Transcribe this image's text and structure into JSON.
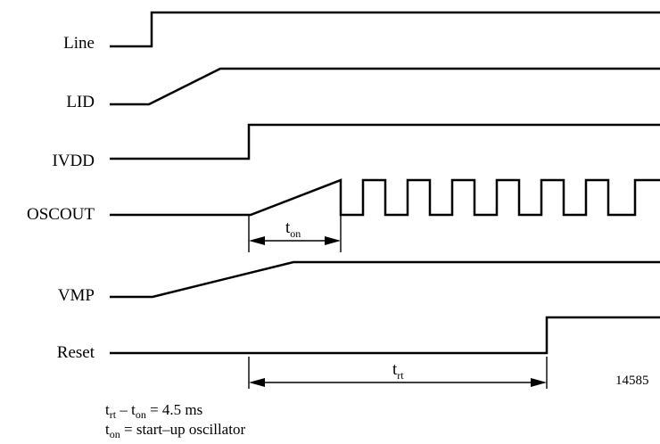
{
  "signals": [
    {
      "id": "line",
      "label": "Line"
    },
    {
      "id": "lid",
      "label": "LID"
    },
    {
      "id": "ivdd",
      "label": "IVDD"
    },
    {
      "id": "oscout",
      "label": "OSCOUT"
    },
    {
      "id": "vmp",
      "label": "VMP"
    },
    {
      "id": "reset",
      "label": "Reset"
    }
  ],
  "intervals": {
    "ton": {
      "symbol": "t",
      "subscript": "on"
    },
    "trt": {
      "symbol": "t",
      "subscript": "rt"
    }
  },
  "figure_number": "14585",
  "notes": {
    "line1": {
      "a_symbol": "t",
      "a_sub": "rt",
      "op": " – ",
      "b_symbol": "t",
      "b_sub": "on",
      "rest": " = 4.5 ms"
    },
    "line2": {
      "symbol": "t",
      "sub": "on",
      "rest": " = start–up oscillator"
    }
  }
}
